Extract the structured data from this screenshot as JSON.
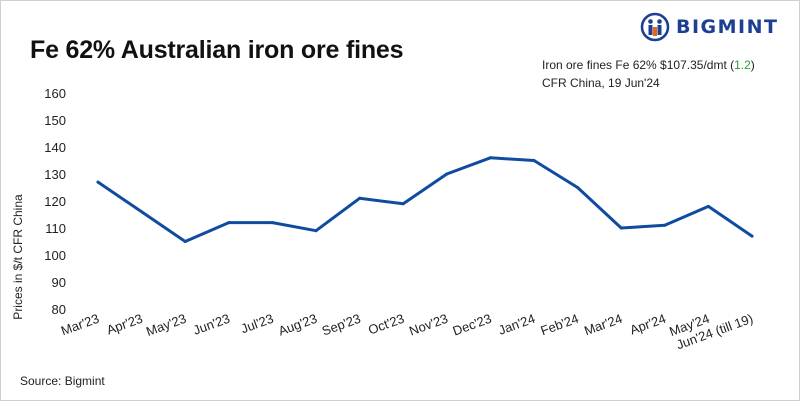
{
  "title": "Fe 62% Australian iron ore fines",
  "logo": {
    "text": "BIGMINT"
  },
  "info": {
    "line1_prefix": "Iron ore fines Fe 62% $107.35/dmt (",
    "change": "1.2",
    "line1_suffix": ")",
    "line2": "CFR China,  19 Jun'24"
  },
  "source": "Source: Bigmint",
  "colors": {
    "line": "#0f4c9f",
    "change": "#2e9c3a",
    "brand": "#1b3f93"
  },
  "chart_data": {
    "type": "line",
    "categories": [
      "Mar'23",
      "Apr'23",
      "May'23",
      "Jun'23",
      "Jul'23",
      "Aug'23",
      "Sep'23",
      "Oct'23",
      "Nov'23",
      "Dec'23",
      "Jan'24",
      "Feb'24",
      "Mar'24",
      "Apr'24",
      "May'24",
      "Jun'24 (till 19)"
    ],
    "series": [
      {
        "values": [
          127,
          116,
          105,
          112,
          112,
          109,
          121,
          119,
          130,
          136,
          135,
          125,
          110,
          111,
          118,
          107
        ]
      }
    ],
    "xlabel": "",
    "ylabel": "Prices in $/t CFR China",
    "ylim": [
      80,
      160
    ],
    "yticks": [
      80,
      90,
      100,
      110,
      120,
      130,
      140,
      150,
      160
    ],
    "grid": false,
    "legend": "none"
  }
}
